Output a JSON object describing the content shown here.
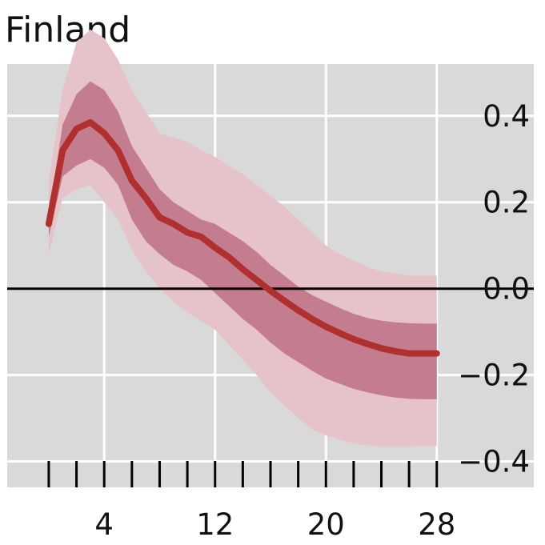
{
  "chart_data": {
    "type": "line",
    "title": "Finland",
    "xlabel": "",
    "ylabel": "",
    "x_ticks": [
      4,
      12,
      20,
      28
    ],
    "y_ticks": [
      0.4,
      0.2,
      0.0,
      -0.2,
      -0.4
    ],
    "y_tick_labels": [
      "0.4",
      "0.2",
      "0.0",
      "−0.2",
      "−0.4"
    ],
    "xlim": [
      -3,
      35
    ],
    "ylim": [
      -0.46,
      0.52
    ],
    "y_axis_position": "right",
    "grid": true,
    "zero_line": true,
    "colors": {
      "background": "#d9d9d9",
      "grid": "#ffffff",
      "line": "#b03030",
      "inner_band": "#c47d8e",
      "outer_band": "#e6c3c9",
      "zero_line": "#000000"
    },
    "x": [
      0,
      1,
      2,
      3,
      4,
      5,
      6,
      7,
      8,
      9,
      10,
      11,
      12,
      13,
      14,
      15,
      16,
      17,
      18,
      19,
      20,
      21,
      22,
      23,
      24,
      25,
      26,
      27,
      28
    ],
    "series": [
      {
        "role": "median",
        "values": [
          0.15,
          0.32,
          0.37,
          0.385,
          0.36,
          0.32,
          0.25,
          0.21,
          0.165,
          0.15,
          0.13,
          0.12,
          0.095,
          0.073,
          0.045,
          0.02,
          -0.005,
          -0.028,
          -0.05,
          -0.07,
          -0.088,
          -0.103,
          -0.117,
          -0.128,
          -0.138,
          -0.145,
          -0.15,
          -0.15,
          -0.15
        ]
      },
      {
        "role": "inner_band",
        "lower": [
          0.12,
          0.26,
          0.285,
          0.3,
          0.28,
          0.24,
          0.16,
          0.11,
          0.08,
          0.055,
          0.04,
          0.02,
          -0.01,
          -0.04,
          -0.07,
          -0.095,
          -0.125,
          -0.15,
          -0.17,
          -0.19,
          -0.208,
          -0.22,
          -0.232,
          -0.24,
          -0.247,
          -0.252,
          -0.255,
          -0.256,
          -0.256
        ],
        "upper": [
          0.17,
          0.38,
          0.45,
          0.48,
          0.46,
          0.41,
          0.33,
          0.28,
          0.23,
          0.2,
          0.18,
          0.16,
          0.15,
          0.13,
          0.11,
          0.085,
          0.055,
          0.03,
          0.005,
          -0.015,
          -0.03,
          -0.045,
          -0.058,
          -0.068,
          -0.074,
          -0.078,
          -0.08,
          -0.081,
          -0.081
        ]
      },
      {
        "role": "outer_band",
        "lower": [
          0.08,
          0.21,
          0.23,
          0.24,
          0.2,
          0.16,
          0.09,
          0.04,
          0.0,
          -0.03,
          -0.055,
          -0.075,
          -0.095,
          -0.13,
          -0.165,
          -0.2,
          -0.24,
          -0.27,
          -0.3,
          -0.325,
          -0.34,
          -0.35,
          -0.358,
          -0.363,
          -0.365,
          -0.365,
          -0.365,
          -0.364,
          -0.364
        ]
      },
      {
        "role": "outer_band_upper",
        "upper": [
          0.25,
          0.46,
          0.57,
          0.6,
          0.58,
          0.53,
          0.46,
          0.41,
          0.36,
          0.35,
          0.34,
          0.32,
          0.305,
          0.285,
          0.265,
          0.24,
          0.215,
          0.19,
          0.16,
          0.13,
          0.1,
          0.08,
          0.065,
          0.05,
          0.04,
          0.035,
          0.03,
          0.03,
          0.03
        ]
      }
    ]
  }
}
